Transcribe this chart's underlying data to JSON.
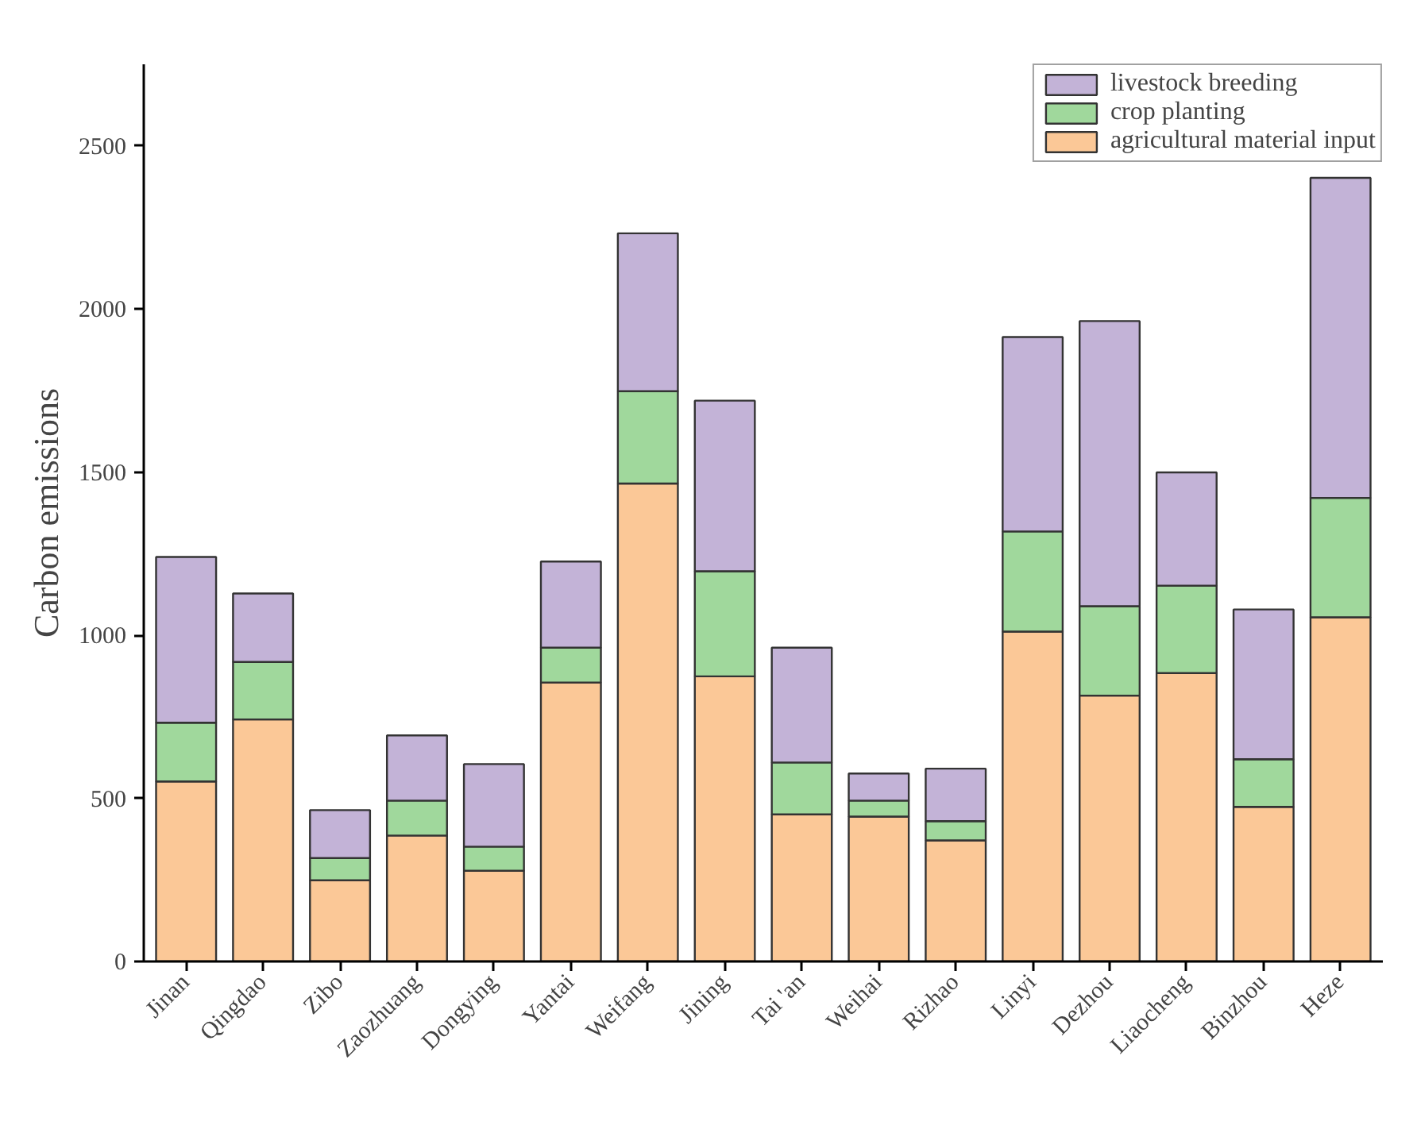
{
  "chart_data": {
    "type": "bar",
    "stacked": true,
    "ylabel": "Carbon emissions",
    "categories": [
      "Jinan",
      "Qingdao",
      "Zibo",
      "Zaozhuang",
      "Dongying",
      "Yantai",
      "Weifang",
      "Jining",
      "Tai 'an",
      "Weihai",
      "Rizhao",
      "Linyi",
      "Dezhou",
      "Liaocheng",
      "Binzhou",
      "Heze"
    ],
    "series": [
      {
        "name": "agricultural material input",
        "color": "#fbc897",
        "values": [
          552,
          742,
          249,
          386,
          278,
          855,
          1465,
          874,
          451,
          444,
          371,
          1011,
          815,
          884,
          474,
          1055
        ]
      },
      {
        "name": "crop planting",
        "color": "#a0d89c",
        "values": [
          180,
          176,
          68,
          107,
          74,
          107,
          283,
          322,
          159,
          49,
          59,
          307,
          274,
          268,
          146,
          366
        ]
      },
      {
        "name": "livestock breeding",
        "color": "#c3b3d7",
        "values": [
          508,
          210,
          147,
          200,
          253,
          264,
          484,
          523,
          352,
          83,
          161,
          596,
          874,
          347,
          459,
          981
        ]
      }
    ],
    "ylim": [
      0,
      2750
    ],
    "yticks": [
      0,
      500,
      1000,
      1500,
      2000,
      2500
    ],
    "grid": false,
    "legend": "top right"
  }
}
